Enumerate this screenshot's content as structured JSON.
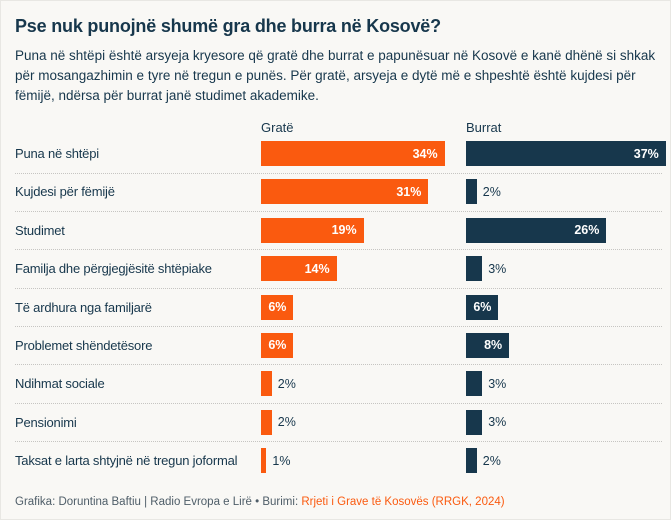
{
  "chart_data": {
    "type": "bar",
    "orientation": "horizontal",
    "title": "Pse nuk punojnë shumë gra dhe burra në Kosovë?",
    "subtitle": "Puna në shtëpi është arsyeja kryesore që gratë dhe burrat e papunësuar në Kosovë e kanë dhënë si shkak për mosangazhimin e tyre në tregun e punës. Për gratë, arsyeja e dytë më e shpeshtë është kujdesi për fëmijë, ndërsa për burrat janë studimet akademike.",
    "categories": [
      "Puna në shtëpi",
      "Kujdesi për fëmijë",
      "Studimet",
      "Familja dhe përgjegjësitë shtëpiake",
      "Të ardhura nga familjarë",
      "Problemet shëndetësore",
      "Ndihmat sociale",
      "Pensionimi",
      "Taksat e larta shtyjnë në tregun joformal"
    ],
    "series": [
      {
        "name": "Gratë",
        "color": "#fa5a0f",
        "values": [
          34,
          31,
          19,
          14,
          6,
          6,
          2,
          2,
          1
        ]
      },
      {
        "name": "Burrat",
        "color": "#17374c",
        "values": [
          37,
          2,
          26,
          3,
          6,
          8,
          3,
          3,
          2
        ]
      }
    ],
    "value_suffix": "%",
    "value_label_inside_threshold": 6,
    "xlim": [
      0,
      37
    ],
    "grid": "off",
    "legend_position": "column-headers"
  },
  "footer": {
    "credit": "Grafika: Doruntina Baftiu | Radio Evropa e Lirë • Burimi: ",
    "source_link": "Rrjeti i Grave të Kosovës (RRGK, 2024)"
  },
  "colors": {
    "background": "#f9f8f5",
    "text": "#17374c",
    "bar_women": "#fa5a0f",
    "bar_men": "#17374c",
    "value_inside": "#ffffff",
    "footer_text": "#4e5d68",
    "link": "#fa5a0f",
    "separator": "#c6c5c2"
  }
}
